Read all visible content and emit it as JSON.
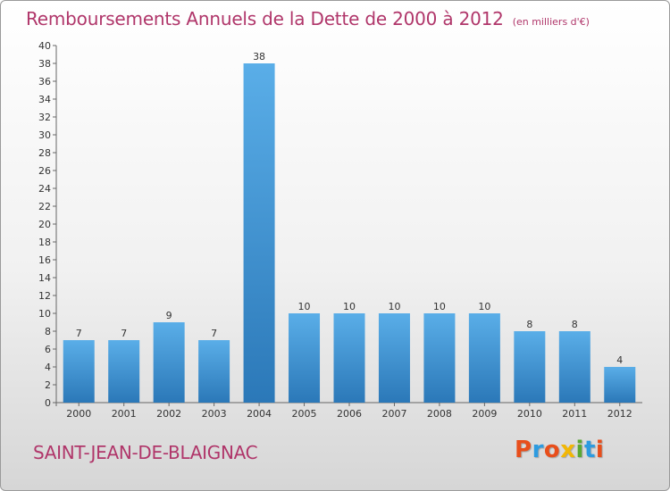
{
  "header": {
    "title": "Remboursements Annuels de la Dette de 2000 à 2012",
    "unit": "(en milliers d'€)"
  },
  "footer": {
    "commune": "SAINT-JEAN-DE-BLAIGNAC",
    "logo": "Proxiti",
    "logo_colors": [
      "#e84e1b",
      "#2d9be0",
      "#e84e1b",
      "#f2b705",
      "#5aa833",
      "#2d9be0",
      "#e84e1b"
    ]
  },
  "chart_data": {
    "type": "bar",
    "title": "Remboursements Annuels de la Dette de 2000 à 2012",
    "subtitle": "(en milliers d'€)",
    "xlabel": "",
    "ylabel": "",
    "categories": [
      "2000",
      "2001",
      "2002",
      "2003",
      "2004",
      "2005",
      "2006",
      "2007",
      "2008",
      "2009",
      "2010",
      "2011",
      "2012"
    ],
    "values": [
      7,
      7,
      9,
      7,
      38,
      10,
      10,
      10,
      10,
      10,
      8,
      8,
      4
    ],
    "ylim": [
      0,
      40
    ],
    "ytick_step": 2,
    "grid": false,
    "bar_color_top": "#5aaee8",
    "bar_color_bottom": "#2b78b8"
  }
}
